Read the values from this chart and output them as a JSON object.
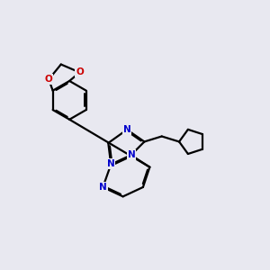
{
  "bg_color": "#e8e8f0",
  "bond_color": "#000000",
  "nitrogen_color": "#0000cc",
  "oxygen_color": "#cc0000",
  "line_width": 1.6,
  "dbo": 0.045,
  "figsize": [
    3.0,
    3.0
  ],
  "dpi": 100,
  "xlim": [
    0.0,
    10.0
  ],
  "ylim": [
    1.5,
    9.5
  ]
}
